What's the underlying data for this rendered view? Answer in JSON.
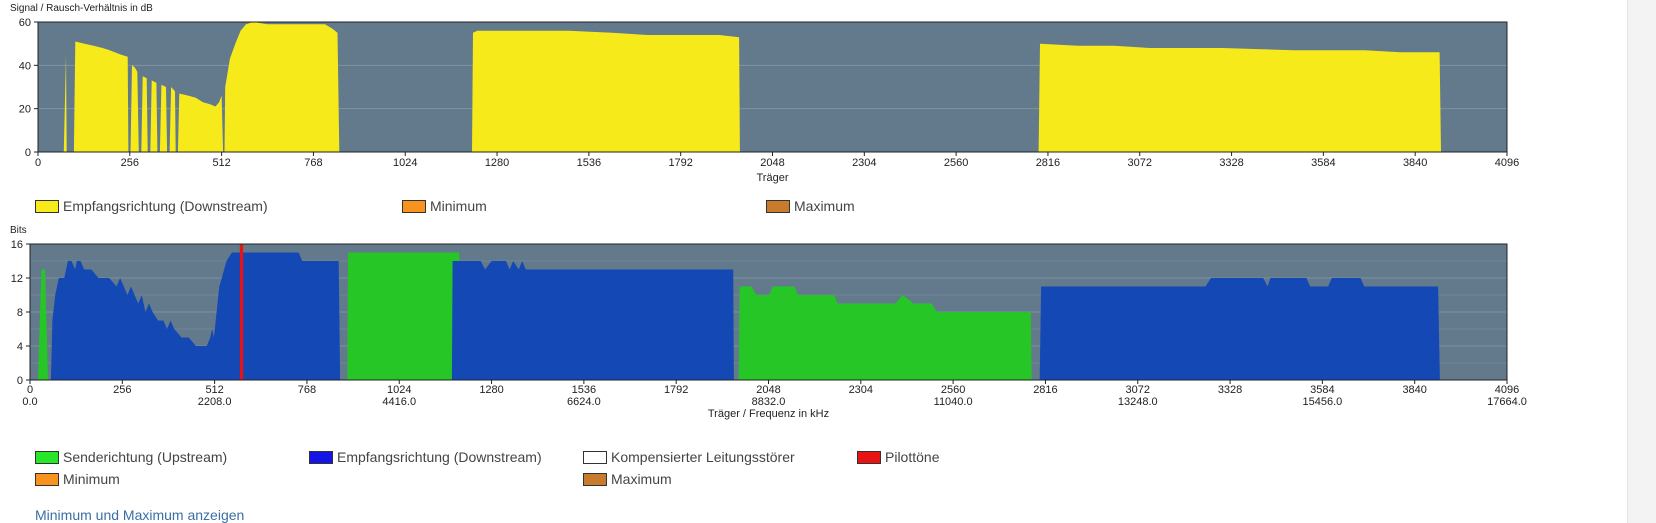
{
  "chart_data": [
    {
      "type": "area",
      "ylabel": "Signal / Rausch-Verhältnis in dB",
      "xlabel": "Träger",
      "xlim": [
        0,
        4096
      ],
      "ylim": [
        0,
        60
      ],
      "yticks": [
        0,
        20,
        40,
        60
      ],
      "xticks": [
        0,
        256,
        512,
        768,
        1024,
        1280,
        1536,
        1792,
        2048,
        2304,
        2560,
        2816,
        3072,
        3328,
        3584,
        3840,
        4096
      ],
      "background": "#627a8c",
      "grid": true,
      "series": [
        {
          "name": "Empfangsrichtung (Downstream)",
          "color": "#f7ea1b",
          "segments": [
            [
              [
                72,
                0
              ],
              [
                78,
                45
              ],
              [
                80,
                0
              ]
            ],
            [
              [
                100,
                0
              ],
              [
                104,
                51
              ],
              [
                130,
                50
              ],
              [
                155,
                49
              ],
              [
                180,
                48
              ],
              [
                200,
                47
              ],
              [
                230,
                45
              ],
              [
                250,
                44
              ],
              [
                252,
                0
              ],
              [
                258,
                0
              ],
              [
                262,
                40
              ],
              [
                270,
                39
              ],
              [
                277,
                37
              ],
              [
                281,
                0
              ],
              [
                288,
                0
              ],
              [
                292,
                35
              ],
              [
                303,
                34
              ],
              [
                306,
                0
              ],
              [
                313,
                0
              ],
              [
                317,
                33
              ],
              [
                330,
                32
              ],
              [
                333,
                0
              ],
              [
                340,
                0
              ],
              [
                344,
                31
              ],
              [
                357,
                30
              ],
              [
                360,
                0
              ],
              [
                367,
                0
              ],
              [
                371,
                30
              ],
              [
                382,
                28
              ],
              [
                384,
                0
              ],
              [
                390,
                0
              ],
              [
                394,
                27
              ],
              [
                420,
                26
              ],
              [
                440,
                25
              ],
              [
                460,
                23
              ],
              [
                480,
                22
              ],
              [
                495,
                21
              ],
              [
                505,
                23
              ],
              [
                512,
                26
              ],
              [
                516,
                0
              ],
              [
                520,
                0
              ],
              [
                522,
                30
              ],
              [
                535,
                43
              ],
              [
                550,
                50
              ],
              [
                565,
                56
              ],
              [
                580,
                59
              ],
              [
                600,
                60
              ],
              [
                640,
                59
              ],
              [
                700,
                59
              ],
              [
                760,
                59
              ],
              [
                800,
                59
              ],
              [
                820,
                57
              ],
              [
                835,
                55
              ],
              [
                840,
                0
              ]
            ],
            [
              [
                1210,
                0
              ],
              [
                1213,
                55
              ],
              [
                1225,
                56
              ],
              [
                1400,
                56
              ],
              [
                1480,
                56
              ],
              [
                1600,
                55
              ],
              [
                1700,
                54
              ],
              [
                1800,
                54
              ],
              [
                1900,
                54
              ],
              [
                1955,
                53
              ],
              [
                1957,
                0
              ]
            ],
            [
              [
                2790,
                0
              ],
              [
                2794,
                50
              ],
              [
                2900,
                49
              ],
              [
                3000,
                49
              ],
              [
                3100,
                48
              ],
              [
                3300,
                48
              ],
              [
                3500,
                47
              ],
              [
                3700,
                47
              ],
              [
                3800,
                46
              ],
              [
                3908,
                46
              ],
              [
                3912,
                0
              ]
            ]
          ]
        },
        {
          "name": "Minimum",
          "color": "#f7931e",
          "segments": []
        },
        {
          "name": "Maximum",
          "color": "#c87a2d",
          "segments": []
        }
      ]
    },
    {
      "type": "area",
      "ylabel": "Bits",
      "xlabel": "Träger / Frequenz in kHz",
      "xlim": [
        0,
        4096
      ],
      "ylim": [
        0,
        16
      ],
      "yticks": [
        0,
        4,
        8,
        12,
        16
      ],
      "xticks": [
        0,
        256,
        512,
        768,
        1024,
        1280,
        1536,
        1792,
        2048,
        2304,
        2560,
        2816,
        3072,
        3328,
        3584,
        3840,
        4096
      ],
      "xticks_freq": [
        "0.0",
        "2208.0",
        "4416.0",
        "6624.0",
        "8832.0",
        "11040.0",
        "13248.0",
        "15456.0",
        "17664.0"
      ],
      "background": "#627a8c",
      "grid": true,
      "series": [
        {
          "name": "Senderichtung (Upstream)",
          "color": "#27c627",
          "segments": [
            [
              [
                22,
                0
              ],
              [
                32,
                13
              ],
              [
                42,
                13
              ],
              [
                50,
                0
              ]
            ],
            [
              [
                880,
                0
              ],
              [
                882,
                15
              ],
              [
                1190,
                15
              ],
              [
                1202,
                0
              ]
            ],
            [
              [
                1965,
                0
              ],
              [
                1968,
                11
              ],
              [
                2000,
                11
              ],
              [
                2015,
                10
              ],
              [
                2050,
                10
              ],
              [
                2060,
                11
              ],
              [
                2120,
                11
              ],
              [
                2130,
                10
              ],
              [
                2230,
                10
              ],
              [
                2240,
                9
              ],
              [
                2400,
                9
              ],
              [
                2420,
                10
              ],
              [
                2450,
                9
              ],
              [
                2500,
                9
              ],
              [
                2515,
                8
              ],
              [
                2560,
                8
              ],
              [
                2700,
                8
              ],
              [
                2775,
                8
              ],
              [
                2778,
                0
              ]
            ]
          ]
        },
        {
          "name": "Empfangsrichtung (Downstream)",
          "color": "#1448b4",
          "segments": [
            [
              [
                58,
                0
              ],
              [
                62,
                7
              ],
              [
                70,
                10
              ],
              [
                80,
                12
              ],
              [
                95,
                12
              ],
              [
                105,
                14
              ],
              [
                115,
                14
              ],
              [
                125,
                13
              ],
              [
                130,
                14
              ],
              [
                140,
                14
              ],
              [
                150,
                13
              ],
              [
                170,
                13
              ],
              [
                190,
                12
              ],
              [
                220,
                12
              ],
              [
                240,
                11
              ],
              [
                250,
                12
              ],
              [
                260,
                11
              ],
              [
                270,
                10
              ],
              [
                280,
                11
              ],
              [
                290,
                10
              ],
              [
                300,
                9
              ],
              [
                310,
                10
              ],
              [
                320,
                8
              ],
              [
                330,
                9
              ],
              [
                340,
                8
              ],
              [
                355,
                7
              ],
              [
                370,
                7
              ],
              [
                380,
                6
              ],
              [
                390,
                7
              ],
              [
                400,
                6
              ],
              [
                420,
                5
              ],
              [
                440,
                5
              ],
              [
                460,
                4
              ],
              [
                490,
                4
              ],
              [
                500,
                5
              ],
              [
                505,
                6
              ],
              [
                510,
                5
              ],
              [
                515,
                7
              ],
              [
                520,
                9
              ],
              [
                525,
                11
              ],
              [
                532,
                12
              ],
              [
                545,
                14
              ],
              [
                560,
                15
              ],
              [
                600,
                15
              ],
              [
                640,
                15
              ],
              [
                700,
                15
              ],
              [
                745,
                15
              ],
              [
                755,
                14
              ],
              [
                830,
                14
              ],
              [
                856,
                14
              ],
              [
                860,
                0
              ]
            ],
            [
              [
                1170,
                0
              ],
              [
                1172,
                14
              ],
              [
                1250,
                14
              ],
              [
                1262,
                13
              ],
              [
                1280,
                14
              ],
              [
                1320,
                14
              ],
              [
                1330,
                13
              ],
              [
                1340,
                14
              ],
              [
                1355,
                13
              ],
              [
                1365,
                14
              ],
              [
                1375,
                13
              ],
              [
                1400,
                13
              ],
              [
                1600,
                13
              ],
              [
                1800,
                13
              ],
              [
                1950,
                13
              ],
              [
                1952,
                0
              ]
            ],
            [
              [
                2800,
                0
              ],
              [
                2804,
                11
              ],
              [
                3000,
                11
              ],
              [
                3200,
                11
              ],
              [
                3260,
                11
              ],
              [
                3275,
                12
              ],
              [
                3420,
                12
              ],
              [
                3432,
                11
              ],
              [
                3440,
                12
              ],
              [
                3540,
                12
              ],
              [
                3550,
                11
              ],
              [
                3600,
                11
              ],
              [
                3610,
                12
              ],
              [
                3690,
                12
              ],
              [
                3700,
                11
              ],
              [
                3710,
                11
              ],
              [
                3905,
                11
              ],
              [
                3910,
                0
              ]
            ]
          ]
        },
        {
          "name": "Kompensierter Leitungsstörer",
          "color": "#ffffff",
          "segments": []
        },
        {
          "name": "Pilottöne",
          "color": "#e81313",
          "bars": [
            [
              582,
              591
            ]
          ]
        },
        {
          "name": "Minimum",
          "color": "#f7931e",
          "segments": []
        },
        {
          "name": "Maximum",
          "color": "#c87a2d",
          "segments": []
        }
      ]
    }
  ],
  "footer_link": "Minimum und Maximum anzeigen"
}
